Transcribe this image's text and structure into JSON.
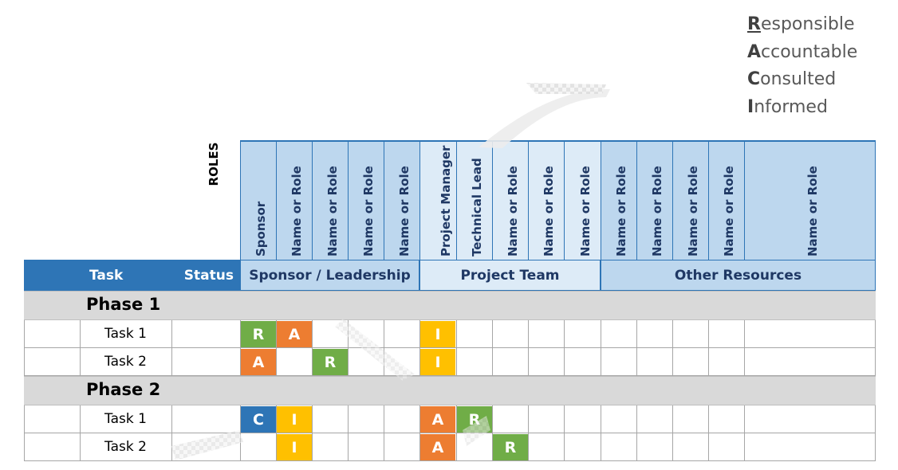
{
  "legend": {
    "items": [
      {
        "first": "R",
        "rest": "esponsible"
      },
      {
        "first": "A",
        "rest": "ccountable"
      },
      {
        "first": "C",
        "rest": "onsulted"
      },
      {
        "first": "I",
        "rest": "nformed"
      }
    ]
  },
  "header": {
    "roles_label": "ROLES",
    "task_label": "Task",
    "status_label": "Status"
  },
  "roles": [
    "Sponsor",
    "Name or Role",
    "Name or Role",
    "Name or Role",
    "Name or Role",
    "Project Manager",
    "Technical Lead",
    "Name or Role",
    "Name or Role",
    "Name or Role",
    "Name or Role",
    "Name or Role",
    "Name or Role",
    "Name or Role",
    "Name or Role"
  ],
  "groups": [
    "Sponsor / Leadership",
    "Project Team",
    "Other Resources"
  ],
  "phases": [
    {
      "name": "Phase 1",
      "tasks": [
        {
          "name": "Task 1",
          "assignments": [
            "R",
            "A",
            "",
            "",
            "",
            "I",
            "",
            "",
            "",
            "",
            "",
            "",
            "",
            "",
            ""
          ]
        },
        {
          "name": "Task 2",
          "assignments": [
            "A",
            "",
            "R",
            "",
            "",
            "I",
            "",
            "",
            "",
            "",
            "",
            "",
            "",
            "",
            ""
          ]
        }
      ]
    },
    {
      "name": "Phase 2",
      "tasks": [
        {
          "name": "Task 1",
          "assignments": [
            "C",
            "I",
            "",
            "",
            "",
            "A",
            "R",
            "",
            "",
            "",
            "",
            "",
            "",
            "",
            ""
          ]
        },
        {
          "name": "Task 2",
          "assignments": [
            "",
            "I",
            "",
            "",
            "",
            "A",
            "",
            "R",
            "",
            "",
            "",
            "",
            "",
            "",
            ""
          ]
        }
      ]
    }
  ],
  "colors": {
    "header_blue": "#2e75b6",
    "light_blue": "#bdd7ee",
    "lighter_blue": "#ddebf7",
    "R": "#70ad47",
    "A": "#ed7d31",
    "C": "#2e75b6",
    "I": "#ffc000"
  }
}
